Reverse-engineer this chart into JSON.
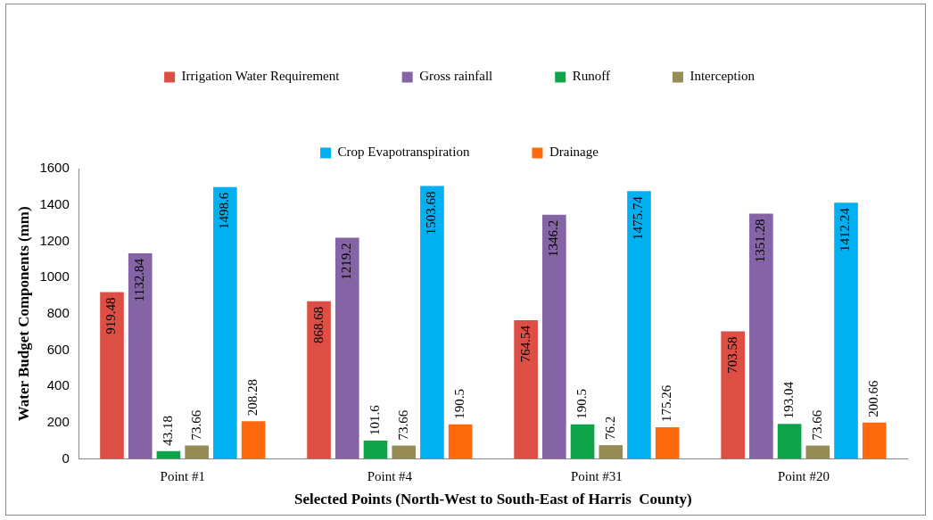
{
  "chart_data": {
    "type": "bar",
    "xlabel": "Selected Points (North-West to South-East of Harris  County)",
    "ylabel": "Water Budget Components (mm)",
    "categories": [
      "Point #1",
      "Point #4",
      "Point #31",
      "Point #20"
    ],
    "series": [
      {
        "name": "Irrigation Water Requirement",
        "color": "#dd4f45",
        "values": [
          919.48,
          868.68,
          764.54,
          703.58
        ]
      },
      {
        "name": "Gross rainfall",
        "color": "#8464a4",
        "values": [
          1132.84,
          1219.2,
          1346.2,
          1351.28
        ]
      },
      {
        "name": "Runoff",
        "color": "#0ea44a",
        "values": [
          43.18,
          101.6,
          190.5,
          193.04
        ]
      },
      {
        "name": "Interception",
        "color": "#958b55",
        "values": [
          73.66,
          73.66,
          76.2,
          73.66
        ]
      },
      {
        "name": "Crop Evapotranspiration",
        "color": "#00b0f0",
        "values": [
          1498.6,
          1503.68,
          1475.74,
          1412.24
        ]
      },
      {
        "name": "Drainage",
        "color": "#ff6a0e",
        "values": [
          208.28,
          190.5,
          175.26,
          200.66
        ]
      }
    ],
    "ylim": [
      0,
      1600
    ],
    "yticks": [
      0,
      200,
      400,
      600,
      800,
      1000,
      1200,
      1400,
      1600
    ],
    "grid": false,
    "legend": "top",
    "data_labels": true
  }
}
